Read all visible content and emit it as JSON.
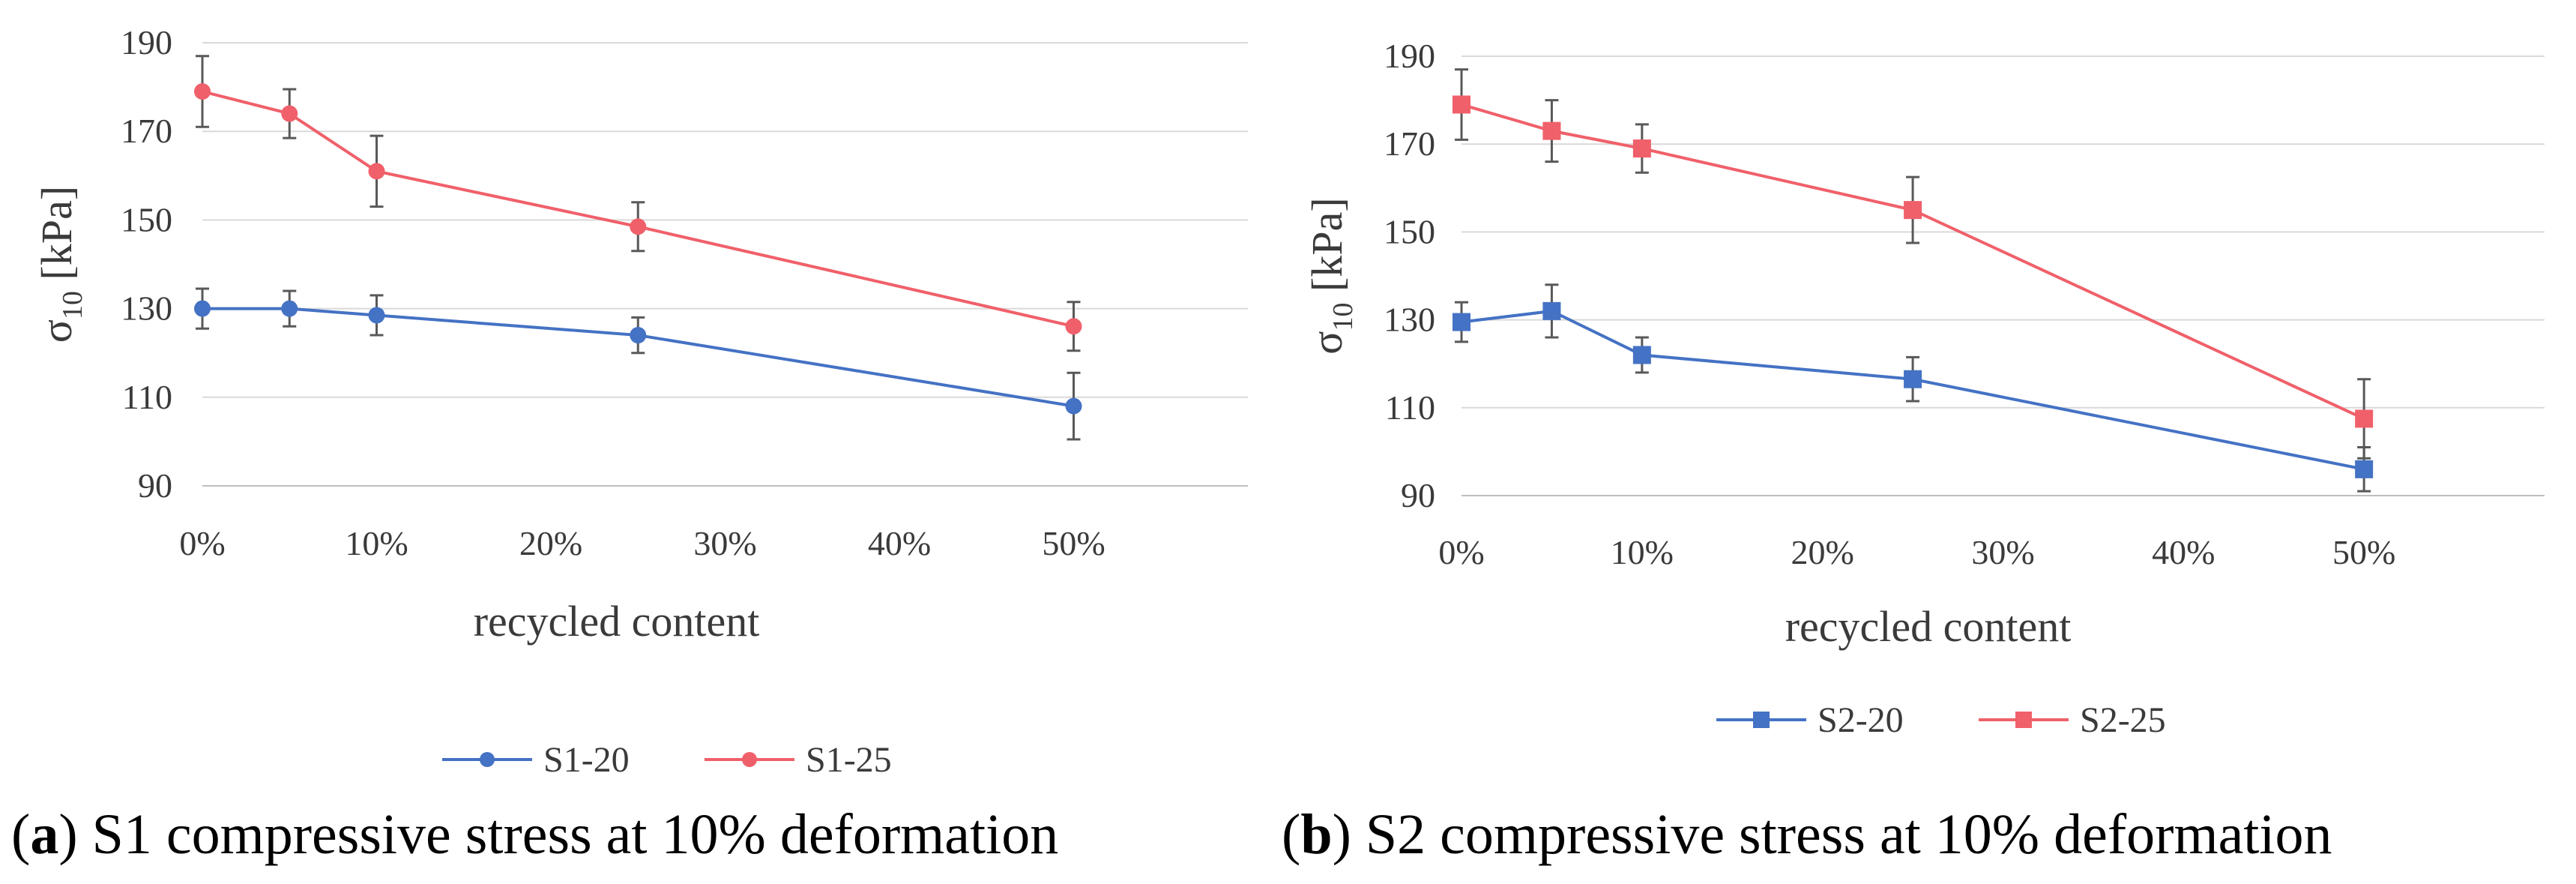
{
  "colors": {
    "series1": "#4472c4",
    "series2": "#f0606a"
  },
  "chart_data": [
    {
      "type": "line",
      "panel": "a",
      "caption_label": "a",
      "caption_text": "S1 compressive stress at 10% deformation",
      "xlabel": "recycled content",
      "ylabel_main": "σ",
      "ylabel_sub": "10",
      "ylabel_unit": "[kPa]",
      "xlim": [
        0,
        60
      ],
      "ylim": [
        90,
        190
      ],
      "xticks": [
        0,
        10,
        20,
        30,
        40,
        50
      ],
      "xtick_labels": [
        "0%",
        "10%",
        "20%",
        "30%",
        "40%",
        "50%"
      ],
      "yticks": [
        90,
        110,
        130,
        150,
        170,
        190
      ],
      "ytick_labels": [
        "90",
        "110",
        "130",
        "150",
        "170",
        "190"
      ],
      "marker": "circle",
      "legend_position": "bottom",
      "series": [
        {
          "name": "S1-20",
          "x": [
            0,
            5,
            10,
            25,
            50
          ],
          "y": [
            130,
            130,
            128.5,
            124,
            108
          ],
          "err": [
            4.5,
            4,
            4.5,
            4,
            7.5
          ]
        },
        {
          "name": "S1-25",
          "x": [
            0,
            5,
            10,
            25,
            50
          ],
          "y": [
            179,
            174,
            161,
            148.5,
            126
          ],
          "err": [
            8,
            5.5,
            8,
            5.5,
            5.5
          ]
        }
      ]
    },
    {
      "type": "line",
      "panel": "b",
      "caption_label": "b",
      "caption_text": "S2 compressive stress at 10% deformation",
      "xlabel": "recycled content",
      "ylabel_main": "σ",
      "ylabel_sub": "10",
      "ylabel_unit": "[kPa]",
      "xlim": [
        0,
        60
      ],
      "ylim": [
        90,
        190
      ],
      "xticks": [
        0,
        10,
        20,
        30,
        40,
        50
      ],
      "xtick_labels": [
        "0%",
        "10%",
        "20%",
        "30%",
        "40%",
        "50%"
      ],
      "yticks": [
        90,
        110,
        130,
        150,
        170,
        190
      ],
      "ytick_labels": [
        "90",
        "110",
        "130",
        "150",
        "170",
        "190"
      ],
      "marker": "square",
      "legend_position": "bottom",
      "series": [
        {
          "name": "S2-20",
          "x": [
            0,
            5,
            10,
            25,
            50
          ],
          "y": [
            129.5,
            132,
            122,
            116.5,
            96
          ],
          "err": [
            4.5,
            6,
            4,
            5,
            5
          ]
        },
        {
          "name": "S2-25",
          "x": [
            0,
            5,
            10,
            25,
            50
          ],
          "y": [
            179,
            173,
            169,
            155,
            107.5
          ],
          "err": [
            8,
            7,
            5.5,
            7.5,
            9
          ]
        }
      ]
    }
  ]
}
